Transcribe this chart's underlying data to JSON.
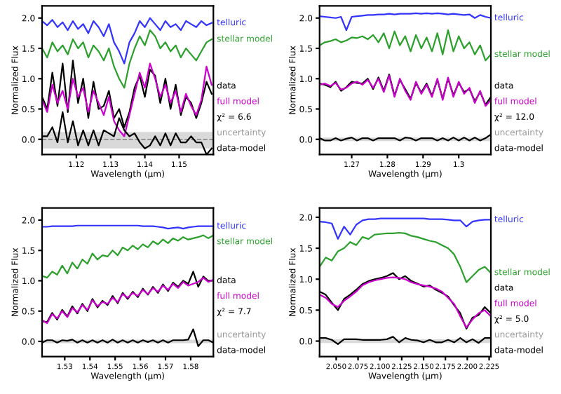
{
  "chart_data": [
    {
      "type": "line",
      "xlabel": "Wavelength (μm)",
      "ylabel": "Normalized Flux",
      "annotations": [
        "χ² = 6.6"
      ],
      "legend": "right",
      "grid": false,
      "x": [
        1.11,
        1.1115,
        1.113,
        1.1145,
        1.116,
        1.1175,
        1.119,
        1.1205,
        1.122,
        1.1235,
        1.125,
        1.1265,
        1.128,
        1.1295,
        1.131,
        1.1325,
        1.134,
        1.1355,
        1.137,
        1.1385,
        1.14,
        1.1415,
        1.143,
        1.1445,
        1.146,
        1.1475,
        1.149,
        1.1505,
        1.152,
        1.1535,
        1.155,
        1.1565,
        1.158,
        1.1595
      ],
      "xlim": [
        1.11,
        1.16
      ],
      "xticks": [
        1.12,
        1.13,
        1.14,
        1.15
      ],
      "ylim": [
        -0.25,
        2.2
      ],
      "yticks": [
        {
          "value": 0,
          "label": "0.0"
        },
        {
          "value": 0.5,
          "label": "0.5"
        },
        {
          "value": 1,
          "label": "1.0"
        },
        {
          "value": 1.5,
          "label": "1.5"
        },
        {
          "value": 2,
          "label": "2.0"
        }
      ],
      "bands": [
        {
          "axis": "y",
          "from": -0.15,
          "to": 0.12,
          "label": "uncertainty",
          "color": "#d9d9d9"
        }
      ],
      "ref_lines": [
        {
          "axis": "y",
          "value": 0,
          "color": "#808080",
          "line_style": "dashed"
        }
      ],
      "series": [
        {
          "name": "telluric",
          "color": "#3333ff",
          "values": [
            1.95,
            1.88,
            1.97,
            1.85,
            1.93,
            1.8,
            1.95,
            1.82,
            1.9,
            1.75,
            1.95,
            1.85,
            1.7,
            1.9,
            1.6,
            1.45,
            1.25,
            1.6,
            1.75,
            1.95,
            1.85,
            2.0,
            1.9,
            1.8,
            1.95,
            1.85,
            1.9,
            1.8,
            1.95,
            1.9,
            1.85,
            1.95,
            1.88,
            1.92
          ]
        },
        {
          "name": "stellar model",
          "color": "#2ca02c",
          "values": [
            1.5,
            1.35,
            1.6,
            1.45,
            1.55,
            1.4,
            1.65,
            1.5,
            1.6,
            1.35,
            1.55,
            1.45,
            1.3,
            1.5,
            1.2,
            1.0,
            0.85,
            1.25,
            1.5,
            1.7,
            1.55,
            1.8,
            1.7,
            1.5,
            1.6,
            1.45,
            1.55,
            1.35,
            1.5,
            1.4,
            1.3,
            1.45,
            1.6,
            1.65
          ]
        },
        {
          "name": "data",
          "color": "#000000",
          "values": [
            0.7,
            0.5,
            1.1,
            0.55,
            1.25,
            0.45,
            1.3,
            0.6,
            1.0,
            0.35,
            0.95,
            0.5,
            0.55,
            0.8,
            0.35,
            0.5,
            0.2,
            0.45,
            0.85,
            1.05,
            0.7,
            1.15,
            1.05,
            0.6,
            1.0,
            0.5,
            0.9,
            0.4,
            0.7,
            0.6,
            0.35,
            0.6,
            0.95,
            0.75
          ]
        },
        {
          "name": "full model",
          "color": "#cc00cc",
          "values": [
            0.65,
            0.45,
            0.9,
            0.6,
            0.8,
            0.5,
            1.0,
            0.7,
            0.85,
            0.45,
            0.8,
            0.6,
            0.4,
            0.7,
            0.3,
            0.15,
            0.05,
            0.4,
            0.75,
            1.1,
            0.85,
            1.25,
            1.0,
            0.7,
            0.9,
            0.6,
            0.8,
            0.45,
            0.75,
            0.55,
            0.4,
            0.65,
            1.2,
            0.9
          ]
        },
        {
          "name": "data-model",
          "color": "#000000",
          "values": [
            0.05,
            0.05,
            0.2,
            -0.05,
            0.45,
            -0.05,
            0.3,
            -0.1,
            0.15,
            -0.1,
            0.15,
            -0.1,
            0.15,
            0.1,
            0.05,
            0.35,
            0.15,
            0.05,
            0.1,
            -0.05,
            -0.15,
            -0.1,
            0.05,
            -0.1,
            0.1,
            -0.1,
            0.1,
            -0.05,
            -0.05,
            0.05,
            -0.05,
            -0.05,
            -0.25,
            -0.15
          ]
        }
      ]
    },
    {
      "type": "line",
      "xlabel": "Wavelength (μm)",
      "ylabel": "Normalized Flux",
      "annotations": [
        "χ² = 12.0"
      ],
      "legend": "right",
      "grid": false,
      "x": [
        1.261,
        1.2625,
        1.264,
        1.2655,
        1.267,
        1.2685,
        1.27,
        1.2715,
        1.273,
        1.2745,
        1.276,
        1.2775,
        1.279,
        1.2805,
        1.282,
        1.2835,
        1.285,
        1.2865,
        1.288,
        1.2895,
        1.291,
        1.2925,
        1.294,
        1.2955,
        1.297,
        1.2985,
        1.3,
        1.3015,
        1.303,
        1.3045,
        1.306,
        1.3075,
        1.309
      ],
      "xlim": [
        1.261,
        1.309
      ],
      "xticks": [
        1.27,
        1.28,
        1.29,
        1.3
      ],
      "ylim": [
        -0.25,
        2.2
      ],
      "yticks": [
        {
          "value": 0,
          "label": "0.0"
        },
        {
          "value": 0.5,
          "label": "0.5"
        },
        {
          "value": 1,
          "label": "1.0"
        },
        {
          "value": 1.5,
          "label": "1.5"
        },
        {
          "value": 2,
          "label": "2.0"
        }
      ],
      "bands": [
        {
          "axis": "y",
          "from": -0.03,
          "to": 0.03,
          "label": "uncertainty",
          "color": "#d9d9d9"
        }
      ],
      "series": [
        {
          "name": "telluric",
          "color": "#3333ff",
          "values": [
            2.03,
            2.02,
            2.01,
            2.0,
            2.02,
            1.8,
            2.02,
            2.03,
            2.04,
            2.05,
            2.05,
            2.06,
            2.06,
            2.07,
            2.06,
            2.07,
            2.07,
            2.07,
            2.08,
            2.07,
            2.08,
            2.07,
            2.08,
            2.07,
            2.06,
            2.07,
            2.06,
            2.05,
            2.06,
            2.0,
            2.05,
            2.02,
            2.0
          ]
        },
        {
          "name": "stellar model",
          "color": "#2ca02c",
          "values": [
            1.55,
            1.6,
            1.62,
            1.65,
            1.6,
            1.63,
            1.68,
            1.67,
            1.7,
            1.65,
            1.72,
            1.6,
            1.75,
            1.5,
            1.78,
            1.55,
            1.7,
            1.45,
            1.72,
            1.5,
            1.68,
            1.45,
            1.75,
            1.4,
            1.8,
            1.45,
            1.7,
            1.5,
            1.6,
            1.4,
            1.55,
            1.3,
            1.4
          ]
        },
        {
          "name": "data",
          "color": "#000000",
          "values": [
            0.92,
            0.9,
            0.86,
            0.95,
            0.8,
            0.86,
            0.95,
            0.93,
            0.92,
            1.0,
            0.83,
            1.02,
            0.8,
            1.07,
            0.72,
            0.98,
            0.83,
            0.67,
            0.93,
            0.77,
            0.92,
            0.72,
            0.98,
            0.67,
            1.0,
            0.73,
            0.93,
            0.78,
            0.83,
            0.63,
            0.78,
            0.57,
            0.7
          ]
        },
        {
          "name": "full model",
          "color": "#cc00cc",
          "values": [
            0.9,
            0.92,
            0.88,
            0.93,
            0.82,
            0.85,
            0.92,
            0.95,
            0.9,
            0.98,
            0.85,
            1.0,
            0.78,
            1.05,
            0.7,
            1.0,
            0.8,
            0.65,
            0.95,
            0.75,
            0.9,
            0.7,
            1.0,
            0.65,
            1.02,
            0.7,
            0.95,
            0.75,
            0.85,
            0.6,
            0.8,
            0.55,
            0.65
          ]
        },
        {
          "name": "data-model",
          "color": "#000000",
          "values": [
            0.02,
            -0.02,
            -0.02,
            0.02,
            -0.02,
            0.01,
            0.03,
            -0.02,
            0.02,
            0.02,
            -0.02,
            0.02,
            0.02,
            0.02,
            0.02,
            -0.02,
            0.03,
            0.02,
            -0.02,
            0.02,
            0.02,
            0.02,
            -0.02,
            0.02,
            -0.02,
            0.03,
            -0.02,
            0.03,
            -0.02,
            0.03,
            -0.02,
            0.02,
            0.08
          ]
        }
      ]
    },
    {
      "type": "line",
      "xlabel": "Wavelength (μm)",
      "ylabel": "Normalized Flux",
      "annotations": [
        "χ² = 7.7"
      ],
      "legend": "right",
      "grid": false,
      "x": [
        1.521,
        1.523,
        1.525,
        1.527,
        1.529,
        1.531,
        1.533,
        1.535,
        1.537,
        1.539,
        1.541,
        1.543,
        1.545,
        1.547,
        1.549,
        1.551,
        1.553,
        1.555,
        1.557,
        1.559,
        1.561,
        1.563,
        1.565,
        1.567,
        1.569,
        1.571,
        1.573,
        1.575,
        1.577,
        1.579,
        1.581,
        1.583,
        1.585,
        1.587,
        1.589
      ],
      "xlim": [
        1.521,
        1.589
      ],
      "xticks": [
        1.53,
        1.54,
        1.55,
        1.56,
        1.57,
        1.58
      ],
      "ylim": [
        -0.25,
        2.2
      ],
      "yticks": [
        {
          "value": 0,
          "label": "0.0"
        },
        {
          "value": 0.5,
          "label": "0.5"
        },
        {
          "value": 1,
          "label": "1.0"
        },
        {
          "value": 1.5,
          "label": "1.5"
        },
        {
          "value": 2,
          "label": "2.0"
        }
      ],
      "bands": [
        {
          "axis": "y",
          "from": -0.03,
          "to": 0.03,
          "label": "uncertainty",
          "color": "#d9d9d9"
        }
      ],
      "series": [
        {
          "name": "telluric",
          "color": "#3333ff",
          "values": [
            1.89,
            1.89,
            1.9,
            1.9,
            1.9,
            1.9,
            1.9,
            1.91,
            1.91,
            1.91,
            1.91,
            1.91,
            1.91,
            1.91,
            1.91,
            1.91,
            1.91,
            1.91,
            1.91,
            1.91,
            1.9,
            1.9,
            1.9,
            1.89,
            1.88,
            1.86,
            1.87,
            1.88,
            1.86,
            1.88,
            1.89,
            1.9,
            1.9,
            1.9,
            1.9
          ]
        },
        {
          "name": "stellar model",
          "color": "#2ca02c",
          "values": [
            1.08,
            1.05,
            1.15,
            1.1,
            1.25,
            1.12,
            1.3,
            1.2,
            1.35,
            1.28,
            1.45,
            1.35,
            1.42,
            1.4,
            1.5,
            1.42,
            1.55,
            1.5,
            1.58,
            1.52,
            1.6,
            1.55,
            1.65,
            1.6,
            1.68,
            1.62,
            1.7,
            1.66,
            1.72,
            1.68,
            1.7,
            1.72,
            1.75,
            1.7,
            1.75
          ]
        },
        {
          "name": "data",
          "color": "#000000",
          "values": [
            0.33,
            0.32,
            0.47,
            0.36,
            0.52,
            0.41,
            0.58,
            0.46,
            0.62,
            0.5,
            0.7,
            0.56,
            0.67,
            0.6,
            0.75,
            0.63,
            0.8,
            0.7,
            0.82,
            0.73,
            0.87,
            0.77,
            0.9,
            0.8,
            0.94,
            0.83,
            0.97,
            0.9,
            1.0,
            0.95,
            1.15,
            0.9,
            1.07,
            1.0,
            1.0
          ]
        },
        {
          "name": "full model",
          "color": "#cc00cc",
          "values": [
            0.35,
            0.3,
            0.45,
            0.38,
            0.5,
            0.4,
            0.55,
            0.48,
            0.6,
            0.52,
            0.68,
            0.58,
            0.65,
            0.62,
            0.72,
            0.65,
            0.78,
            0.72,
            0.8,
            0.75,
            0.85,
            0.78,
            0.88,
            0.82,
            0.92,
            0.85,
            0.95,
            0.88,
            0.98,
            0.92,
            0.95,
            0.98,
            1.05,
            0.98,
            1.02
          ]
        },
        {
          "name": "data-model",
          "color": "#000000",
          "values": [
            -0.02,
            0.02,
            0.02,
            -0.02,
            0.02,
            0.01,
            0.03,
            -0.02,
            0.02,
            -0.02,
            0.02,
            -0.02,
            0.02,
            -0.02,
            0.03,
            -0.02,
            0.02,
            -0.02,
            0.02,
            -0.02,
            0.02,
            -0.01,
            0.02,
            -0.02,
            0.02,
            -0.02,
            0.02,
            0.02,
            0.02,
            0.03,
            0.2,
            -0.08,
            0.02,
            0.02,
            -0.02
          ]
        }
      ]
    },
    {
      "type": "line",
      "xlabel": "Wavelength (μm)",
      "ylabel": "Normalized Flux",
      "annotations": [
        "χ² = 5.0"
      ],
      "legend": "right",
      "grid": false,
      "x": [
        2.031,
        2.038,
        2.045,
        2.052,
        2.059,
        2.066,
        2.073,
        2.08,
        2.087,
        2.094,
        2.101,
        2.108,
        2.115,
        2.122,
        2.129,
        2.136,
        2.143,
        2.15,
        2.157,
        2.164,
        2.171,
        2.178,
        2.185,
        2.192,
        2.199,
        2.206,
        2.213,
        2.22,
        2.227
      ],
      "xlim": [
        2.031,
        2.227
      ],
      "xticks": [
        {
          "value": 2.05,
          "label": "2.050"
        },
        {
          "value": 2.075,
          "label": "2.075"
        },
        {
          "value": 2.1,
          "label": "2.100"
        },
        {
          "value": 2.125,
          "label": "2.125"
        },
        {
          "value": 2.15,
          "label": "2.150"
        },
        {
          "value": 2.175,
          "label": "2.175"
        },
        {
          "value": 2.2,
          "label": "2.200"
        },
        {
          "value": 2.225,
          "label": "2.225"
        }
      ],
      "ylim": [
        -0.25,
        2.15
      ],
      "yticks": [
        {
          "value": 0,
          "label": "0.0"
        },
        {
          "value": 0.5,
          "label": "0.5"
        },
        {
          "value": 1,
          "label": "1.0"
        },
        {
          "value": 1.5,
          "label": "1.5"
        },
        {
          "value": 2,
          "label": "2.0"
        }
      ],
      "bands": [
        {
          "axis": "y",
          "from": -0.03,
          "to": 0.03,
          "label": "uncertainty",
          "color": "#d9d9d9"
        }
      ],
      "series": [
        {
          "name": "telluric",
          "color": "#3333ff",
          "values": [
            1.93,
            1.92,
            1.9,
            1.65,
            1.85,
            1.72,
            1.88,
            1.95,
            1.97,
            1.97,
            1.98,
            1.98,
            1.98,
            1.98,
            1.98,
            1.98,
            1.98,
            1.98,
            1.97,
            1.97,
            1.97,
            1.96,
            1.95,
            1.95,
            1.85,
            1.93,
            1.95,
            1.96,
            1.96
          ]
        },
        {
          "name": "stellar model",
          "color": "#2ca02c",
          "values": [
            1.2,
            1.35,
            1.3,
            1.45,
            1.5,
            1.6,
            1.55,
            1.68,
            1.65,
            1.72,
            1.73,
            1.74,
            1.74,
            1.75,
            1.74,
            1.7,
            1.68,
            1.65,
            1.62,
            1.6,
            1.55,
            1.5,
            1.4,
            1.2,
            0.95,
            1.05,
            1.15,
            1.2,
            1.1
          ]
        },
        {
          "name": "data",
          "color": "#000000",
          "values": [
            0.8,
            0.75,
            0.62,
            0.5,
            0.68,
            0.75,
            0.83,
            0.92,
            0.97,
            1.0,
            1.02,
            1.05,
            1.1,
            1.0,
            1.05,
            0.97,
            0.93,
            0.88,
            0.9,
            0.83,
            0.78,
            0.72,
            0.58,
            0.45,
            0.2,
            0.38,
            0.42,
            0.55,
            0.45
          ]
        },
        {
          "name": "full model",
          "color": "#cc00cc",
          "values": [
            0.75,
            0.7,
            0.6,
            0.55,
            0.65,
            0.72,
            0.8,
            0.9,
            0.95,
            0.98,
            1.0,
            1.02,
            1.03,
            1.02,
            1.0,
            0.95,
            0.92,
            0.9,
            0.88,
            0.85,
            0.8,
            0.7,
            0.6,
            0.4,
            0.22,
            0.35,
            0.45,
            0.5,
            0.4
          ]
        },
        {
          "name": "data-model",
          "color": "#000000",
          "values": [
            0.05,
            0.05,
            0.02,
            -0.05,
            0.03,
            0.03,
            0.03,
            0.02,
            0.02,
            0.02,
            0.02,
            0.03,
            0.07,
            -0.02,
            0.05,
            0.02,
            0.01,
            -0.02,
            0.02,
            -0.02,
            -0.02,
            0.02,
            -0.02,
            0.05,
            -0.02,
            0.03,
            -0.03,
            0.05,
            0.05
          ]
        }
      ]
    }
  ]
}
